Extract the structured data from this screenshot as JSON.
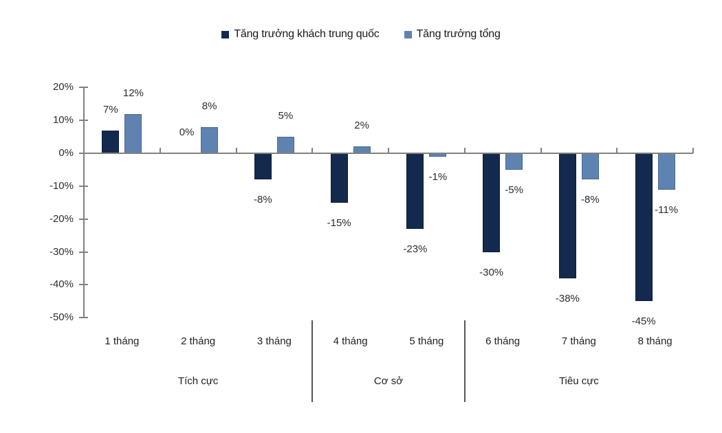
{
  "chart_data": {
    "type": "bar",
    "categories": [
      "1 tháng",
      "2 tháng",
      "3 tháng",
      "4 tháng",
      "5 tháng",
      "6 tháng",
      "7 tháng",
      "8 tháng"
    ],
    "series": [
      {
        "name": "Tăng trưởng khách trung quốc",
        "color": "#13294e",
        "border_color": "#0d1d3a",
        "values": [
          7,
          0,
          -8,
          -15,
          -23,
          -30,
          -38,
          -45
        ],
        "labels": [
          "7%",
          "0%",
          "-8%",
          "-15%",
          "-23%",
          "-30%",
          "-38%",
          "-45%"
        ]
      },
      {
        "name": "Tăng trưởng tổng",
        "color": "#5f83b1",
        "border_color": "#466992",
        "values": [
          12,
          8,
          5,
          2,
          -1,
          -5,
          -8,
          -11
        ],
        "labels": [
          "12%",
          "8%",
          "5%",
          "2%",
          "-1%",
          "-5%",
          "-8%",
          "-11%"
        ]
      }
    ],
    "y_ticks": [
      {
        "label": "20%",
        "value": 20
      },
      {
        "label": "10%",
        "value": 10
      },
      {
        "label": "0%",
        "value": 0
      },
      {
        "label": "-10%",
        "value": -10
      },
      {
        "label": "-20%",
        "value": -20
      },
      {
        "label": "-30%",
        "value": -30
      },
      {
        "label": "-40%",
        "value": -40
      },
      {
        "label": "-50%",
        "value": -50
      }
    ],
    "ylim": [
      -50,
      20
    ],
    "groups": [
      {
        "label": "Tích cực",
        "span": [
          0,
          2
        ]
      },
      {
        "label": "Cơ sở",
        "span": [
          3,
          4
        ]
      },
      {
        "label": "Tiêu cực",
        "span": [
          5,
          7
        ]
      }
    ],
    "legend_position": "top",
    "grid": false,
    "title": "",
    "xlabel": "",
    "ylabel": ""
  },
  "colors": {
    "axis": "#808080",
    "divider": "#555555",
    "text": "#2b2b33",
    "background": "#ffffff"
  }
}
